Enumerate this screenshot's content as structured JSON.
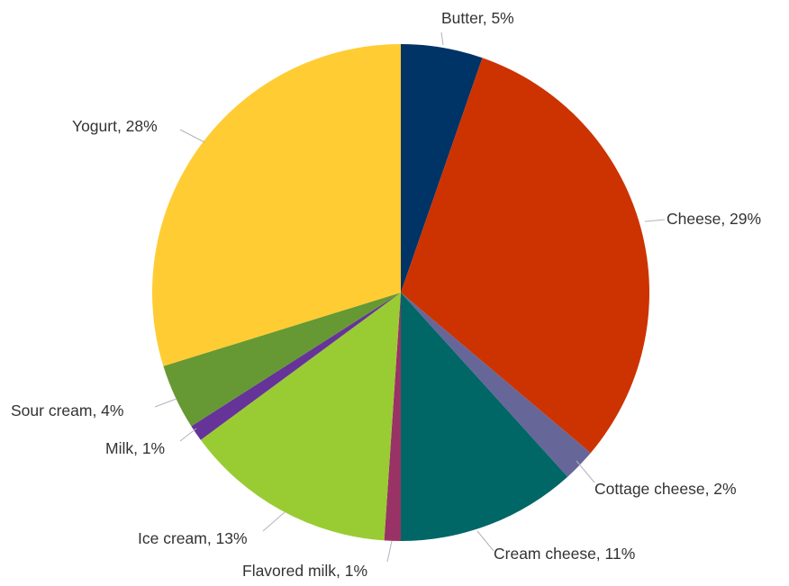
{
  "chart_data": {
    "type": "pie",
    "start_angle_deg": 0,
    "direction": "clockwise",
    "slices": [
      {
        "label": "Butter, 5%",
        "value": 5,
        "color": "#003366"
      },
      {
        "label": "Cheese, 29%",
        "value": 29,
        "color": "#cc3300"
      },
      {
        "label": "Cottage cheese, 2%",
        "value": 2,
        "color": "#666699"
      },
      {
        "label": "Cream cheese, 11%",
        "value": 11,
        "color": "#006666"
      },
      {
        "label": "Flavored milk, 1%",
        "value": 1,
        "color": "#993366"
      },
      {
        "label": "Ice cream, 13%",
        "value": 13,
        "color": "#99cc33"
      },
      {
        "label": "Milk, 1%",
        "value": 1,
        "color": "#663399"
      },
      {
        "label": "Sour cream, 4%",
        "value": 4,
        "color": "#669933"
      },
      {
        "label": "Yogurt, 28%",
        "value": 28,
        "color": "#ffcc33"
      }
    ],
    "legend": "none",
    "labels": "outside with leader lines"
  }
}
